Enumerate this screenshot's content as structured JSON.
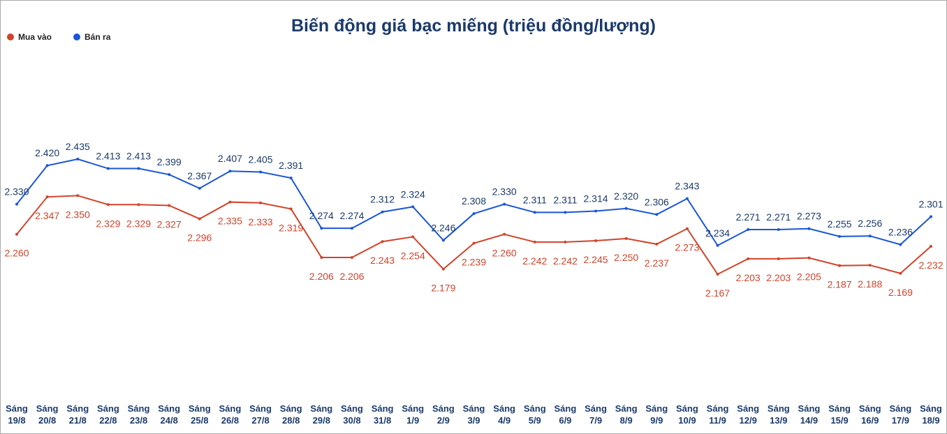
{
  "chart_data": {
    "type": "line",
    "title": "Biến động giá bạc miếng (triệu đồng/lượng)",
    "legend": "top-left",
    "categories": [
      "Sáng 19/8",
      "Sáng 20/8",
      "Sáng 21/8",
      "Sáng 22/8",
      "Sáng 23/8",
      "Sáng 24/8",
      "Sáng 25/8",
      "Sáng 26/8",
      "Sáng 27/8",
      "Sáng 28/8",
      "Sáng 29/8",
      "Sáng 30/8",
      "Sáng 31/8",
      "Sáng 1/9",
      "Sáng 2/9",
      "Sáng 3/9",
      "Sáng 4/9",
      "Sáng 5/9",
      "Sáng 6/9",
      "Sáng 7/9",
      "Sáng 8/9",
      "Sáng 9/9",
      "Sáng 10/9",
      "Sáng 11/9",
      "Sáng 12/9",
      "Sáng 13/9",
      "Sáng 14/9",
      "Sáng 15/9",
      "Sáng 16/9",
      "Sáng 17/9",
      "Sáng 18/9"
    ],
    "series": [
      {
        "name": "Mua vào",
        "color": "#d1432a",
        "values": [
          2.26,
          2.347,
          2.35,
          2.329,
          2.329,
          2.327,
          2.296,
          2.335,
          2.333,
          2.319,
          2.206,
          2.206,
          2.243,
          2.254,
          2.179,
          2.239,
          2.26,
          2.242,
          2.242,
          2.245,
          2.25,
          2.237,
          2.273,
          2.167,
          2.203,
          2.203,
          2.205,
          2.187,
          2.188,
          2.169,
          2.232
        ],
        "value_labels": [
          "2.260",
          "2.347",
          "2.350",
          "2.329",
          "2.329",
          "2.327",
          "2.296",
          "2.335",
          "2.333",
          "2.319",
          "2.206",
          "2.206",
          "2.243",
          "2.254",
          "2.179",
          "2.239",
          "2.260",
          "2.242",
          "2.242",
          "2.245",
          "2.250",
          "2.237",
          "2.273",
          "2.167",
          "2.203",
          "2.203",
          "2.205",
          "2.187",
          "2.188",
          "2.169",
          "2.232"
        ]
      },
      {
        "name": "Bán ra",
        "color": "#1a56d6",
        "values": [
          2.33,
          2.42,
          2.435,
          2.413,
          2.413,
          2.399,
          2.367,
          2.407,
          2.405,
          2.391,
          2.274,
          2.274,
          2.312,
          2.324,
          2.246,
          2.308,
          2.33,
          2.311,
          2.311,
          2.314,
          2.32,
          2.306,
          2.343,
          2.234,
          2.271,
          2.271,
          2.273,
          2.255,
          2.256,
          2.236,
          2.301
        ],
        "value_labels": [
          "2.330",
          "2.420",
          "2.435",
          "2.413",
          "2.413",
          "2.399",
          "2.367",
          "2.407",
          "2.405",
          "2.391",
          "2.274",
          "2.274",
          "2.312",
          "2.324",
          "2.246",
          "2.308",
          "2.330",
          "2.311",
          "2.311",
          "2.314",
          "2.320",
          "2.306",
          "2.343",
          "2.234",
          "2.271",
          "2.271",
          "2.273",
          "2.255",
          "2.256",
          "2.236",
          "2.301"
        ]
      }
    ]
  }
}
